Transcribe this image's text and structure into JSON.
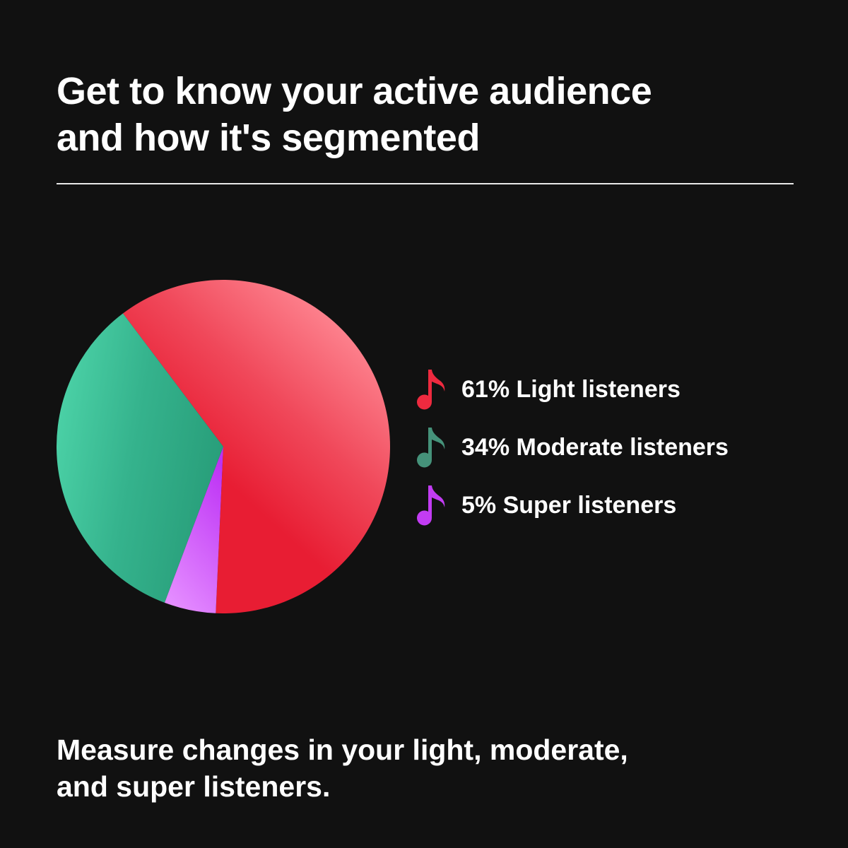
{
  "headline": {
    "line1": "Get to know your active audience",
    "line2": "and how it's segmented"
  },
  "caption": {
    "line1": "Measure changes in your light, moderate,",
    "line2": "and super listeners."
  },
  "legend": [
    {
      "label": "61% Light listeners",
      "icon": "music-note-icon",
      "color": "#ee2a3f"
    },
    {
      "label": "34% Moderate listeners",
      "icon": "music-note-icon",
      "color": "#45927a"
    },
    {
      "label": "5% Super listeners",
      "icon": "music-note-icon",
      "color": "#c23cf3"
    }
  ],
  "chart_data": {
    "type": "pie",
    "title": "",
    "labels": [
      "Light listeners",
      "Moderate listeners",
      "Super listeners"
    ],
    "values": [
      61,
      34,
      5
    ],
    "unit": "%",
    "colors": [
      "#ee2a3f",
      "#3cab8a",
      "#c23cf3"
    ],
    "legend_position": "right"
  },
  "colors": {
    "background": "#111111",
    "text": "#ffffff",
    "divider": "#e8e8e8"
  }
}
